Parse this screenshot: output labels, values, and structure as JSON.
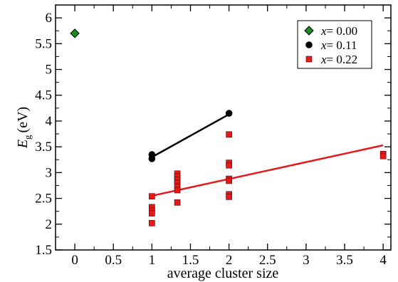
{
  "chart_data": {
    "type": "scatter",
    "xlabel": "average cluster size",
    "ylabel": {
      "main": "E",
      "sub": "g",
      "unit": "(eV)"
    },
    "xlim": [
      -0.25,
      4.1
    ],
    "ylim": [
      1.5,
      6.25
    ],
    "x_ticks": [
      0,
      0.5,
      1,
      1.5,
      2,
      2.5,
      3,
      3.5,
      4
    ],
    "x_tick_labels": [
      "0",
      "0.5",
      "1",
      "1.5",
      "2",
      "2.5",
      "3",
      "3.5",
      "4"
    ],
    "y_ticks": [
      1.5,
      2,
      2.5,
      3,
      3.5,
      4,
      4.5,
      5,
      5.5,
      6
    ],
    "y_tick_labels": [
      "1.5",
      "2",
      "2.5",
      "3",
      "3.5",
      "4",
      "4.5",
      "5",
      "5.5",
      "6"
    ],
    "grid": false,
    "legend_position": "top-right",
    "series": [
      {
        "name_var": "x",
        "name_value": "= 0.00",
        "marker": "diamond",
        "color": "#1a8a1a",
        "points": [
          [
            0,
            5.7
          ]
        ]
      },
      {
        "name_var": "x",
        "name_value": "= 0.11",
        "marker": "circle",
        "color": "#000000",
        "points": [
          [
            1,
            3.35
          ],
          [
            1,
            3.27
          ],
          [
            2,
            4.15
          ]
        ]
      },
      {
        "name_var": "x",
        "name_value": "= 0.22",
        "marker": "square",
        "color": "#e31a1a",
        "points": [
          [
            1,
            2.54
          ],
          [
            1,
            2.33
          ],
          [
            1,
            2.26
          ],
          [
            1,
            2.21
          ],
          [
            1,
            2.02
          ],
          [
            1.33,
            2.98
          ],
          [
            1.33,
            2.93
          ],
          [
            1.33,
            2.86
          ],
          [
            1.33,
            2.8
          ],
          [
            1.33,
            2.73
          ],
          [
            1.33,
            2.66
          ],
          [
            1.33,
            2.42
          ],
          [
            2,
            3.74
          ],
          [
            2,
            3.19
          ],
          [
            2,
            3.14
          ],
          [
            2,
            2.88
          ],
          [
            2,
            2.84
          ],
          [
            2,
            2.58
          ],
          [
            2,
            2.53
          ],
          [
            4,
            3.36
          ],
          [
            4,
            3.32
          ]
        ]
      }
    ],
    "fit_lines": [
      {
        "series": "x = 0.11",
        "color": "#000000",
        "x": [
          1,
          2
        ],
        "y": [
          3.3,
          4.13
        ]
      },
      {
        "series": "x = 0.22",
        "color": "#e31a1a",
        "x": [
          1,
          4
        ],
        "y": [
          2.55,
          3.53
        ]
      }
    ]
  }
}
